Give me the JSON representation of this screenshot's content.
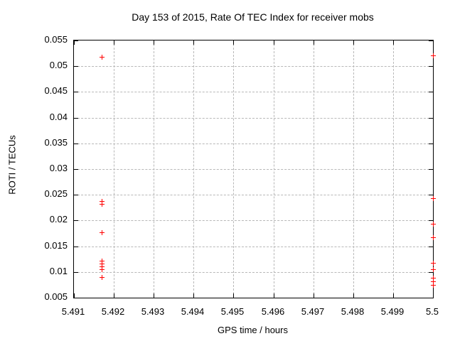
{
  "colors": {
    "background": "#ffffff",
    "axis": "#000000",
    "grid": "#b8b8b8",
    "marker": "#ff0000",
    "text": "#000000"
  },
  "chart_data": {
    "type": "scatter",
    "title": "Day 153 of 2015, Rate Of TEC Index for receiver mobs",
    "xlabel": "GPS time / hours",
    "ylabel": "ROTI / TECUs",
    "xlim": [
      5.491,
      5.5
    ],
    "ylim": [
      0.005,
      0.055
    ],
    "grid": true,
    "legend": "none",
    "marker_style": "plus",
    "xticks": [
      {
        "value": 5.491,
        "label": "5.491"
      },
      {
        "value": 5.492,
        "label": "5.492"
      },
      {
        "value": 5.493,
        "label": "5.493"
      },
      {
        "value": 5.494,
        "label": "5.494"
      },
      {
        "value": 5.495,
        "label": "5.495"
      },
      {
        "value": 5.496,
        "label": "5.496"
      },
      {
        "value": 5.497,
        "label": "5.497"
      },
      {
        "value": 5.498,
        "label": "5.498"
      },
      {
        "value": 5.499,
        "label": "5.499"
      },
      {
        "value": 5.5,
        "label": "5.5"
      }
    ],
    "yticks": [
      {
        "value": 0.005,
        "label": "0.005"
      },
      {
        "value": 0.01,
        "label": "0.01"
      },
      {
        "value": 0.015,
        "label": "0.015"
      },
      {
        "value": 0.02,
        "label": "0.02"
      },
      {
        "value": 0.025,
        "label": "0.025"
      },
      {
        "value": 0.03,
        "label": "0.03"
      },
      {
        "value": 0.035,
        "label": "0.035"
      },
      {
        "value": 0.04,
        "label": "0.04"
      },
      {
        "value": 0.045,
        "label": "0.045"
      },
      {
        "value": 0.05,
        "label": "0.05"
      },
      {
        "value": 0.055,
        "label": "0.055"
      }
    ],
    "series": [
      {
        "name": "receiver mobs ROTI",
        "color": "#ff0000",
        "marker": "plus",
        "points": [
          [
            5.4917,
            0.0518
          ],
          [
            5.4917,
            0.0237
          ],
          [
            5.4917,
            0.0231
          ],
          [
            5.4917,
            0.0177
          ],
          [
            5.4917,
            0.0121
          ],
          [
            5.4917,
            0.0115
          ],
          [
            5.4917,
            0.011
          ],
          [
            5.4917,
            0.0104
          ],
          [
            5.4917,
            0.0089
          ],
          [
            5.5,
            0.052
          ],
          [
            5.5,
            0.0242
          ],
          [
            5.5,
            0.0193
          ],
          [
            5.5,
            0.0167
          ],
          [
            5.5,
            0.0117
          ],
          [
            5.5,
            0.0104
          ],
          [
            5.5,
            0.0088
          ],
          [
            5.5,
            0.0081
          ],
          [
            5.5,
            0.0074
          ]
        ]
      }
    ]
  }
}
